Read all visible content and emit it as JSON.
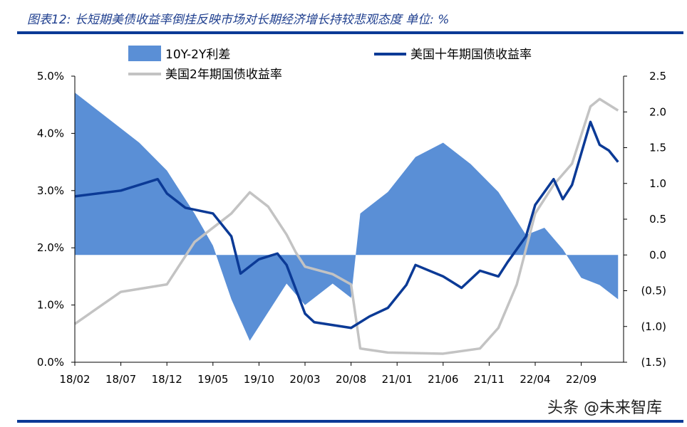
{
  "title": "图表12: 长短期美债收益率倒挂反映市场对长期经济增长持较悲观态度 单位: %",
  "watermark": "头条 @未来智库",
  "colors": {
    "spread": "#5a8fd6",
    "ten_year": "#0b3a96",
    "two_year": "#c3c3c3",
    "title": "#1f3f8f",
    "rule": "#0b3a96",
    "negative": "#e00000"
  },
  "chart_data": {
    "type": "line",
    "title": "长短期美债收益率倒挂反映市场对长期经济增长持较悲观态度",
    "x_ticks": [
      "18/02",
      "18/07",
      "18/12",
      "19/05",
      "19/10",
      "20/03",
      "20/08",
      "21/01",
      "21/06",
      "21/11",
      "22/04",
      "22/09"
    ],
    "y_left": {
      "range": [
        0,
        5
      ],
      "ticks": [
        "0.0%",
        "1.0%",
        "2.0%",
        "3.0%",
        "4.0%",
        "5.0%"
      ],
      "tick_values": [
        0,
        1,
        2,
        3,
        4,
        5
      ]
    },
    "y_right": {
      "range": [
        -1.5,
        2.5
      ],
      "ticks": [
        "(1.5)",
        "(1.0)",
        "(0.5)",
        "0.0",
        "0.5",
        "1.0",
        "1.5",
        "2.0",
        "2.5"
      ],
      "tick_values": [
        -1.5,
        -1,
        -0.5,
        0,
        0.5,
        1,
        1.5,
        2,
        2.5
      ]
    },
    "legend": [
      "10Y-2Y利差",
      "美国十年期国债收益率",
      "美国2年期国债收益率"
    ],
    "series": [
      {
        "name": "10Y-2Y利差",
        "type": "area",
        "axis": "right",
        "points": [
          [
            "2018-02",
            2.27
          ],
          [
            "2018-05",
            1.97
          ],
          [
            "2018-09",
            1.57
          ],
          [
            "2018-12",
            1.18
          ],
          [
            "2019-03",
            0.58
          ],
          [
            "2019-05",
            0.13
          ],
          [
            "2019-07",
            -0.62
          ],
          [
            "2019-09",
            -1.2
          ],
          [
            "2019-11",
            -0.8
          ],
          [
            "2020-01",
            -0.4
          ],
          [
            "2020-03",
            -0.7
          ],
          [
            "2020-06",
            -0.4
          ],
          [
            "2020-08",
            -0.6
          ],
          [
            "2020-09",
            0.58
          ],
          [
            "2020-12",
            0.88
          ],
          [
            "2021-03",
            1.37
          ],
          [
            "2021-06",
            1.57
          ],
          [
            "2021-09",
            1.27
          ],
          [
            "2021-12",
            0.88
          ],
          [
            "2022-03",
            0.28
          ],
          [
            "2022-05",
            0.38
          ],
          [
            "2022-07",
            0.08
          ],
          [
            "2022-09",
            -0.32
          ],
          [
            "2022-11",
            -0.42
          ],
          [
            "2023-01",
            -0.62
          ]
        ]
      },
      {
        "name": "美国十年期国债收益率",
        "type": "line",
        "axis": "left",
        "points": [
          [
            "2018-02",
            2.9
          ],
          [
            "2018-07",
            3.0
          ],
          [
            "2018-11",
            3.2
          ],
          [
            "2018-12",
            2.95
          ],
          [
            "2019-02",
            2.7
          ],
          [
            "2019-05",
            2.6
          ],
          [
            "2019-07",
            2.2
          ],
          [
            "2019-08",
            1.55
          ],
          [
            "2019-10",
            1.8
          ],
          [
            "2019-12",
            1.9
          ],
          [
            "2020-01",
            1.7
          ],
          [
            "2020-03",
            0.85
          ],
          [
            "2020-04",
            0.7
          ],
          [
            "2020-08",
            0.6
          ],
          [
            "2020-10",
            0.8
          ],
          [
            "2020-12",
            0.95
          ],
          [
            "2021-02",
            1.35
          ],
          [
            "2021-03",
            1.7
          ],
          [
            "2021-06",
            1.5
          ],
          [
            "2021-08",
            1.3
          ],
          [
            "2021-10",
            1.6
          ],
          [
            "2021-12",
            1.5
          ],
          [
            "2022-01",
            1.75
          ],
          [
            "2022-03",
            2.2
          ],
          [
            "2022-04",
            2.75
          ],
          [
            "2022-06",
            3.2
          ],
          [
            "2022-07",
            2.85
          ],
          [
            "2022-08",
            3.1
          ],
          [
            "2022-10",
            4.2
          ],
          [
            "2022-11",
            3.8
          ],
          [
            "2022-12",
            3.7
          ],
          [
            "2023-01",
            3.5
          ]
        ]
      },
      {
        "name": "美国2年期国债收益率",
        "type": "line",
        "axis": "left",
        "points": [
          [
            "2018-02",
            0.67
          ],
          [
            "2018-07",
            1.23
          ],
          [
            "2018-12",
            1.36
          ],
          [
            "2019-03",
            2.1
          ],
          [
            "2019-05",
            2.35
          ],
          [
            "2019-07",
            2.6
          ],
          [
            "2019-09",
            2.97
          ],
          [
            "2019-11",
            2.72
          ],
          [
            "2020-01",
            2.23
          ],
          [
            "2020-02",
            1.92
          ],
          [
            "2020-03",
            1.67
          ],
          [
            "2020-06",
            1.54
          ],
          [
            "2020-08",
            1.36
          ],
          [
            "2020-09",
            0.24
          ],
          [
            "2020-12",
            0.17
          ],
          [
            "2021-06",
            0.15
          ],
          [
            "2021-10",
            0.24
          ],
          [
            "2021-12",
            0.6
          ],
          [
            "2022-02",
            1.36
          ],
          [
            "2022-04",
            2.6
          ],
          [
            "2022-06",
            3.1
          ],
          [
            "2022-08",
            3.47
          ],
          [
            "2022-10",
            4.47
          ],
          [
            "2022-11",
            4.6
          ],
          [
            "2023-01",
            4.4
          ]
        ]
      }
    ]
  }
}
